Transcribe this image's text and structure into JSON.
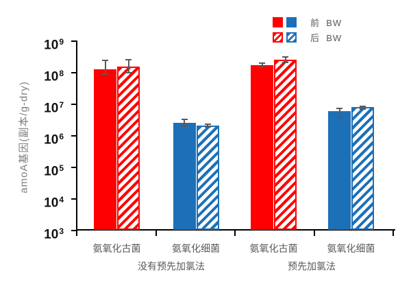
{
  "chart_data": {
    "type": "bar",
    "yscale": "log",
    "title": "",
    "ylabel": "amoA基因(副本/g-dry)",
    "ytick_base": 10,
    "ytick_exponents": [
      3,
      4,
      5,
      6,
      7,
      8,
      9
    ],
    "ylim": [
      1000.0,
      1000000000.0
    ],
    "grid": "off",
    "legend_position": "top-right",
    "legend": [
      {
        "label": "前  BW",
        "style": "solid"
      },
      {
        "label": "后  BW",
        "style": "hatched"
      }
    ],
    "colors": {
      "red": "#FF0000",
      "blue": "#1C70B8",
      "error_bar": "#595959",
      "axis": "#000000",
      "label_text": "#595959"
    },
    "groups": [
      {
        "label": "没有预先加氯法",
        "categories": [
          {
            "label": "氨氧化古菌",
            "color": "#FF0000",
            "bars": [
              {
                "series": "前 BW",
                "hatched": false,
                "value": 130000000.0,
                "err_lo": 90000000.0,
                "err_hi": 250000000.0
              },
              {
                "series": "后 BW",
                "hatched": true,
                "value": 160000000.0,
                "err_lo": 100000000.0,
                "err_hi": 260000000.0
              }
            ]
          },
          {
            "label": "氨氧化细菌",
            "color": "#1C70B8",
            "bars": [
              {
                "series": "前 BW",
                "hatched": false,
                "value": 2600000.0,
                "err_lo": 2000000.0,
                "err_hi": 3300000.0
              },
              {
                "series": "后 BW",
                "hatched": true,
                "value": 2100000.0,
                "err_lo": 1900000.0,
                "err_hi": 2400000.0
              }
            ]
          }
        ]
      },
      {
        "label": "预先加氯法",
        "categories": [
          {
            "label": "氨氧化古菌",
            "color": "#FF0000",
            "bars": [
              {
                "series": "前 BW",
                "hatched": false,
                "value": 175000000.0,
                "err_lo": 150000000.0,
                "err_hi": 200000000.0
              },
              {
                "series": "后 BW",
                "hatched": true,
                "value": 260000000.0,
                "err_lo": 210000000.0,
                "err_hi": 320000000.0
              }
            ]
          },
          {
            "label": "氨氧化细菌",
            "color": "#1C70B8",
            "bars": [
              {
                "series": "前 BW",
                "hatched": false,
                "value": 6000000.0,
                "err_lo": 3800000.0,
                "err_hi": 7500000.0
              },
              {
                "series": "后 BW",
                "hatched": true,
                "value": 8200000.0,
                "err_lo": 7200000.0,
                "err_hi": 8600000.0
              }
            ]
          }
        ]
      }
    ]
  }
}
